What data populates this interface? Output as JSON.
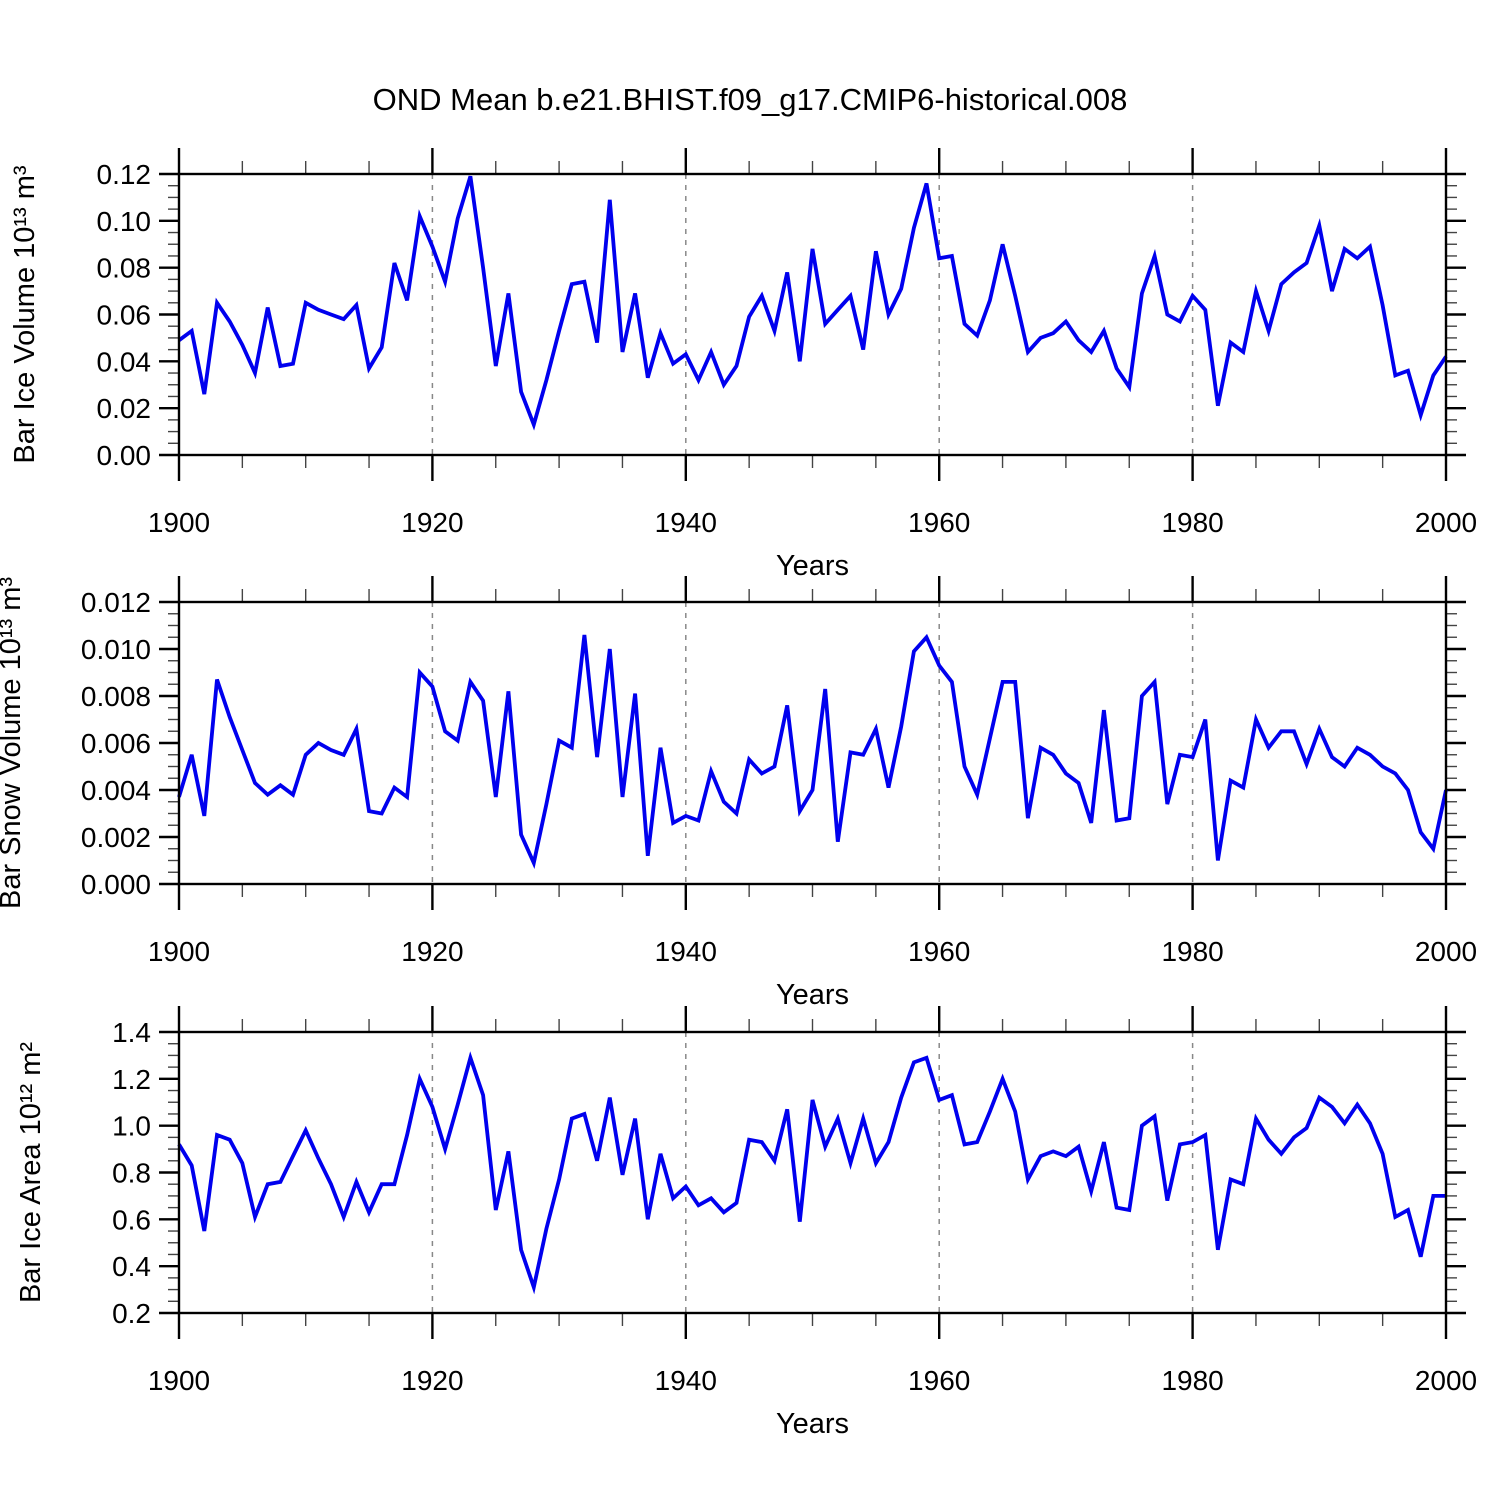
{
  "page": {
    "title": "OND Mean b.e21.BHIST.f09_g17.CMIP6-historical.008"
  },
  "chart_data": [
    {
      "type": "line",
      "panel": "bar-ice-volume",
      "ylabel": "Bar Ice Volume 10¹³ m³",
      "xlabel": "Years",
      "line_color": "#0000EE",
      "grid_color": "#888888",
      "xlim": [
        1900,
        2000
      ],
      "x_major_values": [
        1900,
        1920,
        1940,
        1960,
        1980,
        2000
      ],
      "x_tick_labels": [
        "1900",
        "1920",
        "1940",
        "1960",
        "1980",
        "2000"
      ],
      "x_minor_step": 5,
      "grid_x": [
        1920,
        1940,
        1960,
        1980
      ],
      "ylim": [
        0.0,
        0.12
      ],
      "y_major_step": 0.02,
      "y_minor_step": 0.005,
      "y_tick_labels": [
        "0.00",
        "0.02",
        "0.04",
        "0.06",
        "0.08",
        "0.10",
        "0.12"
      ],
      "x_start": 1900,
      "x_step": 1,
      "values": [
        0.049,
        0.053,
        0.026,
        0.065,
        0.057,
        0.047,
        0.035,
        0.063,
        0.038,
        0.039,
        0.065,
        0.062,
        0.06,
        0.058,
        0.064,
        0.037,
        0.046,
        0.082,
        0.066,
        0.102,
        0.089,
        0.074,
        0.101,
        0.119,
        0.08,
        0.038,
        0.069,
        0.027,
        0.013,
        0.032,
        0.053,
        0.073,
        0.074,
        0.048,
        0.109,
        0.044,
        0.069,
        0.033,
        0.052,
        0.039,
        0.043,
        0.032,
        0.044,
        0.03,
        0.038,
        0.059,
        0.068,
        0.053,
        0.078,
        0.04,
        0.088,
        0.056,
        0.062,
        0.068,
        0.045,
        0.087,
        0.06,
        0.071,
        0.097,
        0.116,
        0.084,
        0.085,
        0.056,
        0.051,
        0.066,
        0.09,
        0.068,
        0.044,
        0.05,
        0.052,
        0.057,
        0.049,
        0.044,
        0.053,
        0.037,
        0.029,
        0.069,
        0.085,
        0.06,
        0.057,
        0.068,
        0.062,
        0.021,
        0.048,
        0.044,
        0.07,
        0.053,
        0.073,
        0.078,
        0.082,
        0.098,
        0.07,
        0.088,
        0.084,
        0.089,
        0.064,
        0.034,
        0.036,
        0.017,
        0.034,
        0.042
      ]
    },
    {
      "type": "line",
      "panel": "bar-snow-volume",
      "ylabel": "Bar Snow Volume 10¹³ m³",
      "xlabel": "Years",
      "line_color": "#0000EE",
      "grid_color": "#888888",
      "xlim": [
        1900,
        2000
      ],
      "x_major_values": [
        1900,
        1920,
        1940,
        1960,
        1980,
        2000
      ],
      "x_tick_labels": [
        "1900",
        "1920",
        "1940",
        "1960",
        "1980",
        "2000"
      ],
      "x_minor_step": 5,
      "grid_x": [
        1920,
        1940,
        1960,
        1980
      ],
      "ylim": [
        0.0,
        0.012
      ],
      "y_major_step": 0.002,
      "y_minor_step": 0.0005,
      "y_tick_labels": [
        "0.000",
        "0.002",
        "0.004",
        "0.006",
        "0.008",
        "0.010",
        "0.012"
      ],
      "x_start": 1900,
      "x_step": 1,
      "values": [
        0.0037,
        0.0055,
        0.0029,
        0.0087,
        0.0071,
        0.0057,
        0.0043,
        0.0038,
        0.0042,
        0.0038,
        0.0055,
        0.006,
        0.0057,
        0.0055,
        0.0066,
        0.0031,
        0.003,
        0.0041,
        0.0037,
        0.009,
        0.0084,
        0.0065,
        0.0061,
        0.0086,
        0.0078,
        0.0037,
        0.0082,
        0.0021,
        0.0009,
        0.0034,
        0.0061,
        0.0058,
        0.0106,
        0.0054,
        0.01,
        0.0037,
        0.0081,
        0.0012,
        0.0058,
        0.0026,
        0.0029,
        0.0027,
        0.0048,
        0.0035,
        0.003,
        0.0053,
        0.0047,
        0.005,
        0.0076,
        0.0031,
        0.004,
        0.0083,
        0.0018,
        0.0056,
        0.0055,
        0.0066,
        0.0041,
        0.0067,
        0.0099,
        0.0105,
        0.0093,
        0.0086,
        0.005,
        0.0038,
        0.0062,
        0.0086,
        0.0086,
        0.0028,
        0.0058,
        0.0055,
        0.0047,
        0.0043,
        0.0026,
        0.0074,
        0.0027,
        0.0028,
        0.008,
        0.0086,
        0.0034,
        0.0055,
        0.0054,
        0.007,
        0.001,
        0.0044,
        0.0041,
        0.007,
        0.0058,
        0.0065,
        0.0065,
        0.0051,
        0.0066,
        0.0054,
        0.005,
        0.0058,
        0.0055,
        0.005,
        0.0047,
        0.004,
        0.0022,
        0.0015,
        0.004
      ]
    },
    {
      "type": "line",
      "panel": "bar-ice-area",
      "ylabel": "Bar Ice Area 10¹² m²",
      "xlabel": "Years",
      "line_color": "#0000EE",
      "grid_color": "#888888",
      "xlim": [
        1900,
        2000
      ],
      "x_major_values": [
        1900,
        1920,
        1940,
        1960,
        1980,
        2000
      ],
      "x_tick_labels": [
        "1900",
        "1920",
        "1940",
        "1960",
        "1980",
        "2000"
      ],
      "x_minor_step": 5,
      "grid_x": [
        1920,
        1940,
        1960,
        1980
      ],
      "ylim": [
        0.2,
        1.4
      ],
      "y_major_step": 0.2,
      "y_minor_step": 0.05,
      "y_tick_labels": [
        "0.2",
        "0.4",
        "0.6",
        "0.8",
        "1.0",
        "1.2",
        "1.4"
      ],
      "x_start": 1900,
      "x_step": 1,
      "values": [
        0.92,
        0.83,
        0.55,
        0.96,
        0.94,
        0.84,
        0.61,
        0.75,
        0.76,
        0.87,
        0.98,
        0.86,
        0.75,
        0.61,
        0.76,
        0.63,
        0.75,
        0.75,
        0.96,
        1.2,
        1.08,
        0.9,
        1.09,
        1.29,
        1.13,
        0.64,
        0.89,
        0.47,
        0.31,
        0.56,
        0.77,
        1.03,
        1.05,
        0.85,
        1.12,
        0.79,
        1.03,
        0.6,
        0.88,
        0.69,
        0.74,
        0.66,
        0.69,
        0.63,
        0.67,
        0.94,
        0.93,
        0.85,
        1.07,
        0.59,
        1.11,
        0.91,
        1.03,
        0.84,
        1.03,
        0.84,
        0.93,
        1.12,
        1.27,
        1.29,
        1.11,
        1.13,
        0.92,
        0.93,
        1.06,
        1.2,
        1.06,
        0.77,
        0.87,
        0.89,
        0.87,
        0.91,
        0.72,
        0.93,
        0.65,
        0.64,
        1.0,
        1.04,
        0.68,
        0.92,
        0.93,
        0.96,
        0.47,
        0.77,
        0.75,
        1.03,
        0.94,
        0.88,
        0.95,
        0.99,
        1.12,
        1.08,
        1.01,
        1.09,
        1.01,
        0.88,
        0.61,
        0.64,
        0.44,
        0.7,
        0.7
      ]
    }
  ]
}
